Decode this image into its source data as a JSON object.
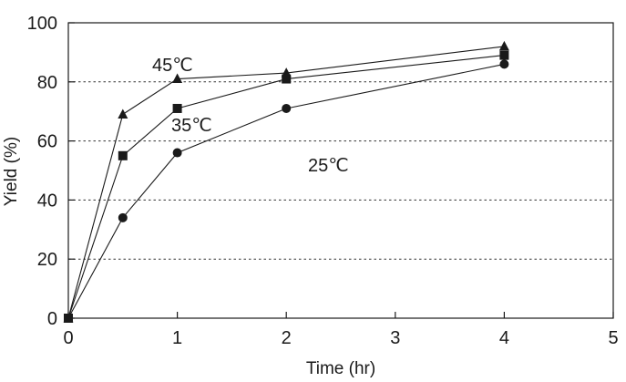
{
  "chart_data": {
    "type": "line",
    "xlabel": "Time (hr)",
    "ylabel": "Yield (%)",
    "xlim": [
      0,
      5
    ],
    "ylim": [
      0,
      100
    ],
    "xticks": [
      "0",
      "1",
      "2",
      "3",
      "4",
      "5"
    ],
    "yticks": [
      "0",
      "20",
      "40",
      "60",
      "80",
      "100"
    ],
    "grid": "horizontal dashed",
    "series": [
      {
        "name": "45℃",
        "marker": "triangle",
        "color": "#1a1a1a",
        "x": [
          0,
          0.5,
          1,
          2,
          4
        ],
        "y": [
          0,
          69,
          81,
          83,
          92
        ]
      },
      {
        "name": "35℃",
        "marker": "square",
        "color": "#1a1a1a",
        "x": [
          0,
          0.5,
          1,
          2,
          4
        ],
        "y": [
          0,
          55,
          71,
          81,
          89
        ]
      },
      {
        "name": "25℃",
        "marker": "circle",
        "color": "#1a1a1a",
        "x": [
          0,
          0.5,
          1,
          2,
          4
        ],
        "y": [
          0,
          34,
          56,
          71,
          86
        ]
      }
    ]
  }
}
